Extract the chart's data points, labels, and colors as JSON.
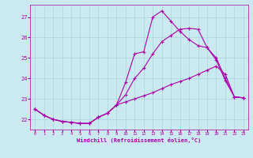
{
  "xlabel": "Windchill (Refroidissement éolien,°C)",
  "background_color": "#cbe9f0",
  "grid_color": "#aad4e0",
  "line_color": "#aa00aa",
  "hours": [
    0,
    1,
    2,
    3,
    4,
    5,
    6,
    7,
    8,
    9,
    10,
    11,
    12,
    13,
    14,
    15,
    16,
    17,
    18,
    19,
    20,
    21,
    22,
    23
  ],
  "series1": [
    22.5,
    22.2,
    22.0,
    21.9,
    21.85,
    21.8,
    21.8,
    22.1,
    22.3,
    22.7,
    23.8,
    25.2,
    25.3,
    27.0,
    27.3,
    26.8,
    26.3,
    25.9,
    25.6,
    25.5,
    25.0,
    24.0,
    23.1,
    23.05
  ],
  "series2": [
    22.5,
    22.2,
    22.0,
    21.9,
    21.85,
    21.8,
    21.8,
    22.1,
    22.3,
    22.7,
    23.2,
    24.0,
    24.5,
    25.2,
    25.8,
    26.1,
    26.4,
    26.45,
    26.4,
    25.5,
    24.9,
    23.9,
    23.1,
    23.05
  ],
  "series3": [
    22.5,
    22.2,
    22.0,
    21.9,
    21.85,
    21.8,
    21.8,
    22.1,
    22.3,
    22.7,
    22.85,
    23.0,
    23.15,
    23.3,
    23.5,
    23.7,
    23.85,
    24.0,
    24.2,
    24.4,
    24.6,
    24.2,
    23.1,
    23.05
  ],
  "ylim": [
    21.5,
    27.6
  ],
  "yticks": [
    22,
    23,
    24,
    25,
    26,
    27
  ],
  "xlim": [
    -0.5,
    23.5
  ],
  "xticks": [
    0,
    1,
    2,
    3,
    4,
    5,
    6,
    7,
    8,
    9,
    10,
    11,
    12,
    13,
    14,
    15,
    16,
    17,
    18,
    19,
    20,
    21,
    22,
    23
  ]
}
